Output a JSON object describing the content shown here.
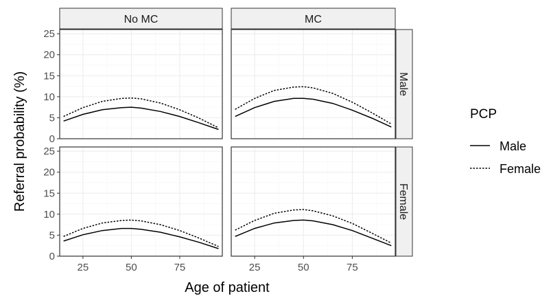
{
  "chart_data": {
    "type": "line",
    "xlabel": "Age of patient",
    "ylabel": "Referral probability (%)",
    "xlim": [
      13,
      97
    ],
    "ylim": [
      0,
      26
    ],
    "x_ticks": [
      25,
      50,
      75
    ],
    "y_ticks": [
      0,
      5,
      10,
      15,
      20,
      25
    ],
    "grid": true,
    "legend": {
      "title": "PCP",
      "position": "right",
      "entries": [
        {
          "label": "Male",
          "linetype": "solid"
        },
        {
          "label": "Female",
          "linetype": "dotted"
        }
      ]
    },
    "facet_columns": [
      "No MC",
      "MC"
    ],
    "facet_rows": [
      "Male",
      "Female"
    ],
    "x": [
      15,
      25,
      35,
      45,
      50,
      55,
      65,
      75,
      85,
      95
    ],
    "panels": [
      {
        "col": "No MC",
        "row": "Male",
        "series": [
          {
            "name": "Male",
            "values": [
              4.2,
              5.8,
              6.9,
              7.4,
              7.5,
              7.3,
              6.5,
              5.3,
              3.8,
              2.2
            ]
          },
          {
            "name": "Female",
            "values": [
              5.3,
              7.4,
              8.9,
              9.6,
              9.7,
              9.5,
              8.5,
              6.9,
              4.9,
              2.6
            ]
          }
        ]
      },
      {
        "col": "MC",
        "row": "Male",
        "series": [
          {
            "name": "Male",
            "values": [
              5.3,
              7.4,
              8.9,
              9.6,
              9.6,
              9.4,
              8.4,
              6.8,
              4.9,
              2.8
            ]
          },
          {
            "name": "Female",
            "values": [
              7.0,
              9.6,
              11.5,
              12.3,
              12.4,
              12.1,
              10.8,
              8.7,
              6.2,
              3.5
            ]
          }
        ]
      },
      {
        "col": "No MC",
        "row": "Female",
        "series": [
          {
            "name": "Male",
            "values": [
              3.6,
              5.1,
              6.1,
              6.6,
              6.6,
              6.4,
              5.7,
              4.6,
              3.3,
              1.8
            ]
          },
          {
            "name": "Female",
            "values": [
              4.7,
              6.6,
              7.9,
              8.5,
              8.6,
              8.4,
              7.5,
              6.1,
              4.3,
              2.3
            ]
          }
        ]
      },
      {
        "col": "MC",
        "row": "Female",
        "series": [
          {
            "name": "Male",
            "values": [
              4.7,
              6.6,
              7.9,
              8.5,
              8.6,
              8.4,
              7.5,
              6.1,
              4.3,
              2.5
            ]
          },
          {
            "name": "Female",
            "values": [
              6.2,
              8.5,
              10.2,
              11.0,
              11.1,
              10.8,
              9.6,
              7.8,
              5.5,
              3.1
            ]
          }
        ]
      }
    ]
  }
}
